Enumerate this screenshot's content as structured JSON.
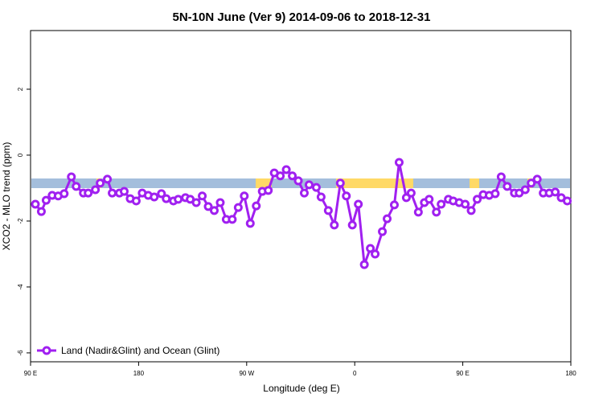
{
  "chart_data": {
    "type": "line",
    "title": "5N-10N June (Ver 9)   2014-09-06 to 2018-12-31",
    "x_label": "Longitude (deg E)",
    "y_label": "XCO2 - MLO trend (ppm)",
    "xlim": [
      90,
      540
    ],
    "xticks": [
      {
        "value": 90,
        "label": "90 E"
      },
      {
        "value": 180,
        "label": "180"
      },
      {
        "value": 270,
        "label": "90 W"
      },
      {
        "value": 360,
        "label": "0"
      },
      {
        "value": 450,
        "label": "90 E"
      },
      {
        "value": 540,
        "label": "180"
      }
    ],
    "ylim": [
      -6.27,
      3.78
    ],
    "yticks": [
      -6,
      -4,
      -2,
      0,
      2
    ],
    "legend": "bottom-left",
    "x": [
      94,
      99,
      103,
      108,
      113,
      118,
      124,
      128,
      134,
      138,
      144,
      148,
      154,
      158,
      164,
      168,
      173,
      178,
      183,
      188,
      193,
      199,
      203,
      209,
      213,
      219,
      223,
      228,
      233,
      238,
      243,
      248,
      253,
      258,
      263,
      268,
      273,
      278,
      283,
      288,
      293,
      298,
      303,
      308,
      313,
      318,
      322,
      328,
      332,
      338,
      343,
      348,
      353,
      358,
      363,
      368,
      373,
      377,
      383,
      387,
      393,
      397,
      403,
      407,
      413,
      418,
      422,
      428,
      432,
      438,
      442,
      447,
      452,
      457,
      462,
      467,
      472,
      477,
      482,
      487,
      493,
      497,
      502,
      507,
      512,
      517,
      522,
      527,
      532,
      537
    ],
    "series": [
      {
        "name": "Land (Nadir&Glint) and Ocean (Glint)",
        "color": "#a020f0",
        "values": [
          -1.49,
          -1.71,
          -1.37,
          -1.22,
          -1.24,
          -1.17,
          -0.66,
          -0.95,
          -1.15,
          -1.15,
          -1.05,
          -0.85,
          -0.73,
          -1.15,
          -1.15,
          -1.1,
          -1.32,
          -1.39,
          -1.15,
          -1.22,
          -1.27,
          -1.17,
          -1.32,
          -1.39,
          -1.34,
          -1.29,
          -1.34,
          -1.44,
          -1.24,
          -1.56,
          -1.68,
          -1.44,
          -1.95,
          -1.95,
          -1.59,
          -1.24,
          -2.07,
          -1.54,
          -1.1,
          -1.07,
          -0.54,
          -0.63,
          -0.44,
          -0.63,
          -0.78,
          -1.15,
          -0.9,
          -0.98,
          -1.27,
          -1.68,
          -2.12,
          -0.85,
          -1.24,
          -2.12,
          -1.49,
          -3.32,
          -2.83,
          -3.0,
          -2.32,
          -1.93,
          -1.51,
          -0.22,
          -1.29,
          -1.15,
          -1.73,
          -1.44,
          -1.34,
          -1.73,
          -1.49,
          -1.34,
          -1.39,
          -1.44,
          -1.49,
          -1.68,
          -1.34,
          -1.2,
          -1.22,
          -1.17,
          -0.66,
          -0.95,
          -1.15,
          -1.15,
          -1.05,
          -0.85,
          -0.73,
          -1.15,
          -1.15,
          -1.12,
          -1.29,
          -1.39
        ]
      }
    ]
  }
}
